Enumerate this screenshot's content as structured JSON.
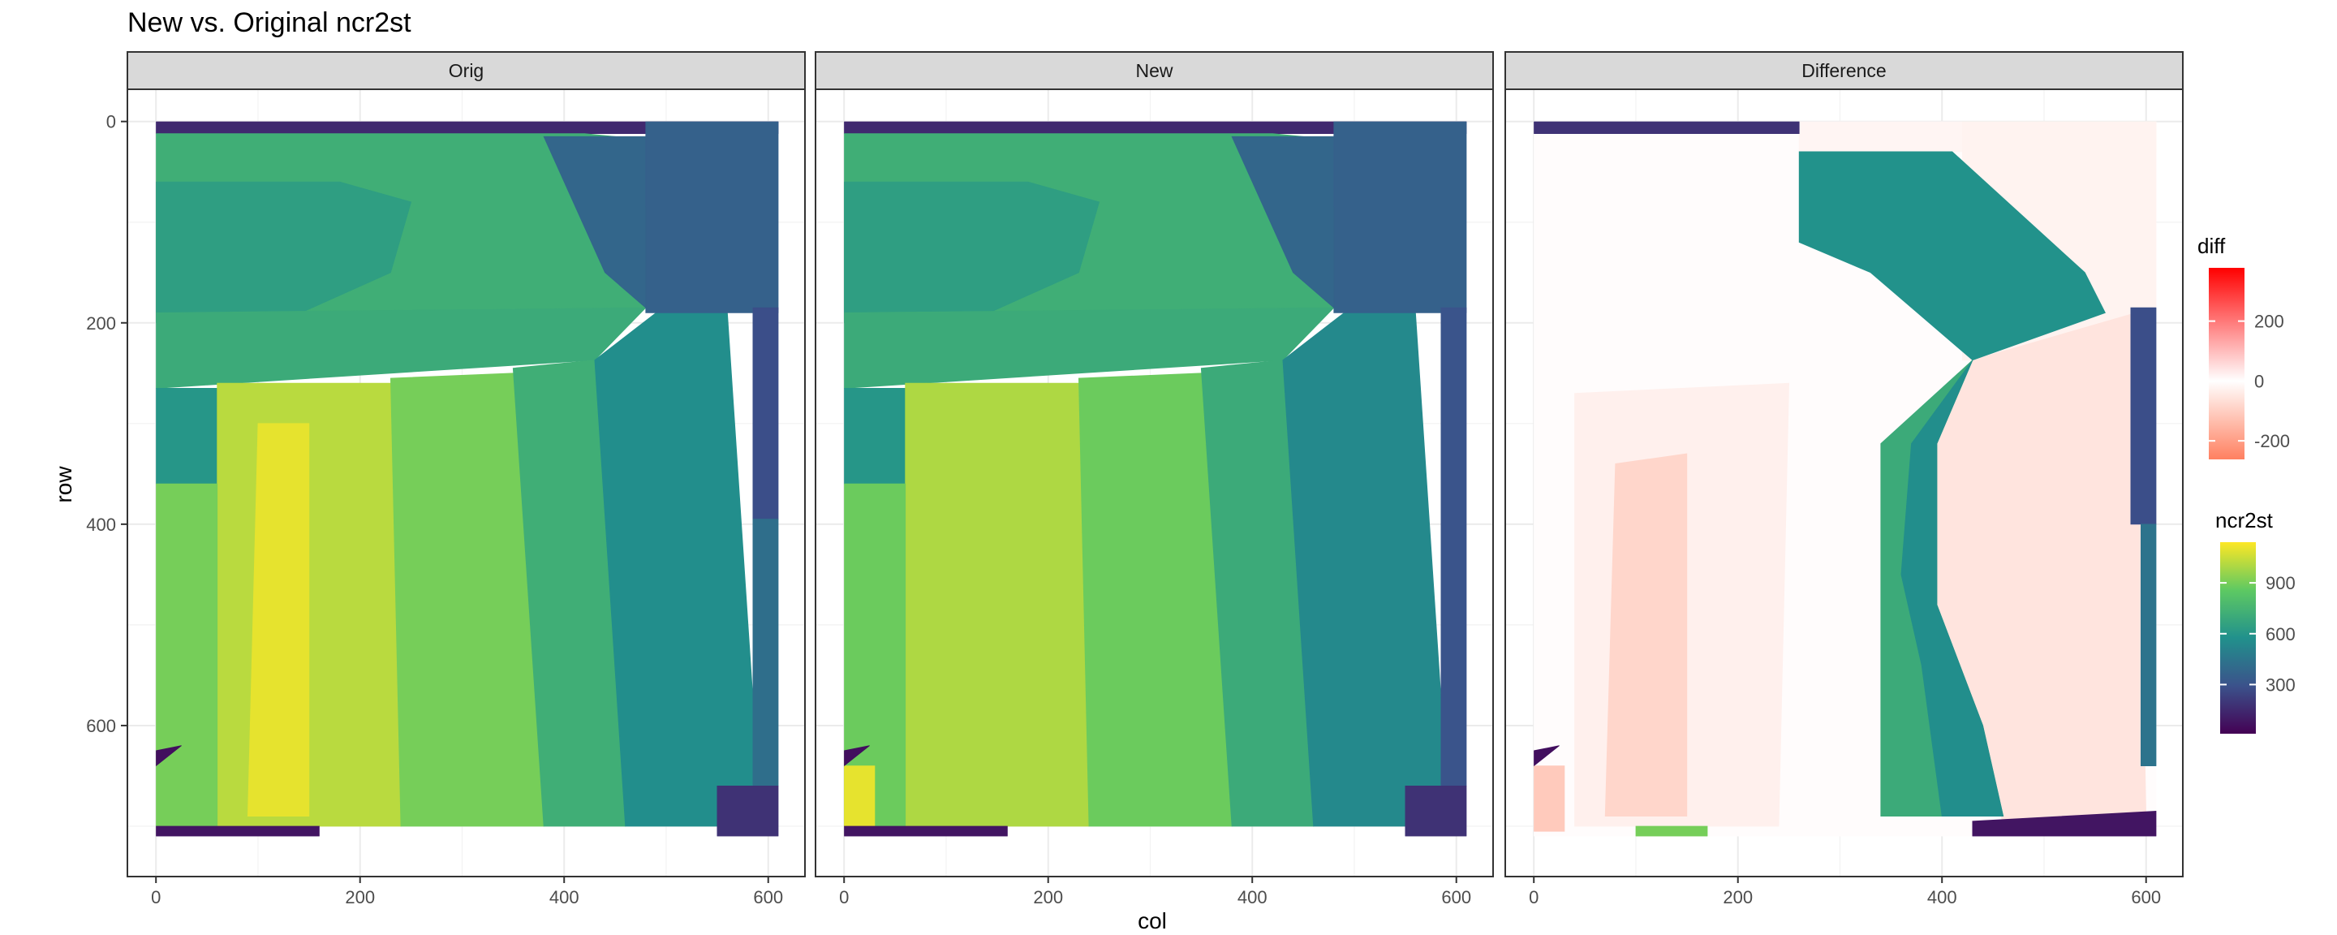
{
  "chart_data": {
    "type": "heatmap",
    "title": "New vs. Original ncr2st",
    "xlabel": "col",
    "ylabel": "row",
    "facets": [
      "Orig",
      "New",
      "Difference"
    ],
    "x_ticks": [
      0,
      200,
      400,
      600
    ],
    "y_ticks": [
      0,
      200,
      400,
      600
    ],
    "xlim": [
      -28,
      636
    ],
    "ylim": [
      750,
      -32
    ],
    "y_reversed": true,
    "grid": true,
    "legend_position": "right",
    "legends": [
      {
        "title": "diff",
        "ticks": [
          200,
          0,
          -200
        ],
        "range": [
          -262,
          378
        ],
        "colors": [
          "#ff8060",
          "#ffffff",
          "#ff0000"
        ]
      },
      {
        "title": "ncr2st",
        "ticks": [
          900,
          600,
          300
        ],
        "range": [
          10,
          1140
        ],
        "colors": [
          "#440154",
          "#3b528b",
          "#21918c",
          "#5ec962",
          "#fde725"
        ]
      }
    ],
    "orig_regions": [
      {
        "poly": [
          [
            0,
            0
          ],
          [
            610,
            0
          ],
          [
            610,
            12
          ],
          [
            0,
            12
          ]
        ],
        "value": 150
      },
      {
        "poly": [
          [
            0,
            12
          ],
          [
            420,
            12
          ],
          [
            480,
            18
          ],
          [
            480,
            185
          ],
          [
            0,
            190
          ]
        ],
        "value": 720
      },
      {
        "poly": [
          [
            0,
            60
          ],
          [
            180,
            60
          ],
          [
            250,
            80
          ],
          [
            230,
            150
          ],
          [
            120,
            200
          ],
          [
            0,
            200
          ]
        ],
        "value": 640
      },
      {
        "poly": [
          [
            0,
            190
          ],
          [
            480,
            185
          ],
          [
            430,
            237
          ],
          [
            0,
            265
          ]
        ],
        "value": 700
      },
      {
        "poly": [
          [
            0,
            265
          ],
          [
            60,
            265
          ],
          [
            60,
            360
          ],
          [
            0,
            360
          ]
        ],
        "value": 600
      },
      {
        "poly": [
          [
            60,
            260
          ],
          [
            230,
            260
          ],
          [
            240,
            700
          ],
          [
            60,
            700
          ]
        ],
        "value": 1020
      },
      {
        "poly": [
          [
            100,
            300
          ],
          [
            150,
            300
          ],
          [
            150,
            690
          ],
          [
            90,
            690
          ]
        ],
        "value": 1100
      },
      {
        "poly": [
          [
            0,
            360
          ],
          [
            60,
            360
          ],
          [
            60,
            700
          ],
          [
            0,
            700
          ]
        ],
        "value": 900
      },
      {
        "poly": [
          [
            230,
            255
          ],
          [
            350,
            250
          ],
          [
            380,
            700
          ],
          [
            240,
            700
          ]
        ],
        "value": 900
      },
      {
        "poly": [
          [
            350,
            245
          ],
          [
            430,
            237
          ],
          [
            460,
            700
          ],
          [
            380,
            700
          ]
        ],
        "value": 720
      },
      {
        "poly": [
          [
            430,
            237
          ],
          [
            490,
            190
          ],
          [
            560,
            190
          ],
          [
            590,
            650
          ],
          [
            560,
            700
          ],
          [
            460,
            700
          ]
        ],
        "value": 560
      },
      {
        "poly": [
          [
            380,
            15
          ],
          [
            480,
            15
          ],
          [
            480,
            185
          ],
          [
            440,
            150
          ]
        ],
        "value": 380
      },
      {
        "poly": [
          [
            480,
            0
          ],
          [
            610,
            0
          ],
          [
            610,
            190
          ],
          [
            480,
            190
          ]
        ],
        "value": 360
      },
      {
        "poly": [
          [
            585,
            185
          ],
          [
            610,
            185
          ],
          [
            610,
            395
          ],
          [
            585,
            395
          ]
        ],
        "value": 280
      },
      {
        "poly": [
          [
            585,
            395
          ],
          [
            610,
            395
          ],
          [
            610,
            660
          ],
          [
            585,
            660
          ]
        ],
        "value": 420
      },
      {
        "poly": [
          [
            550,
            660
          ],
          [
            610,
            660
          ],
          [
            610,
            710
          ],
          [
            550,
            710
          ]
        ],
        "value": 180
      },
      {
        "poly": [
          [
            0,
            700
          ],
          [
            160,
            700
          ],
          [
            160,
            710
          ],
          [
            0,
            710
          ]
        ],
        "value": 80
      },
      {
        "poly": [
          [
            0,
            625
          ],
          [
            25,
            620
          ],
          [
            0,
            640
          ]
        ],
        "value": 60
      }
    ],
    "new_regions": [
      {
        "poly": [
          [
            0,
            0
          ],
          [
            610,
            0
          ],
          [
            610,
            12
          ],
          [
            0,
            12
          ]
        ],
        "value": 150
      },
      {
        "poly": [
          [
            0,
            12
          ],
          [
            420,
            12
          ],
          [
            480,
            18
          ],
          [
            480,
            185
          ],
          [
            0,
            190
          ]
        ],
        "value": 720
      },
      {
        "poly": [
          [
            0,
            60
          ],
          [
            180,
            60
          ],
          [
            250,
            80
          ],
          [
            230,
            150
          ],
          [
            120,
            200
          ],
          [
            0,
            200
          ]
        ],
        "value": 640
      },
      {
        "poly": [
          [
            0,
            190
          ],
          [
            480,
            185
          ],
          [
            430,
            237
          ],
          [
            0,
            265
          ]
        ],
        "value": 700
      },
      {
        "poly": [
          [
            0,
            265
          ],
          [
            60,
            265
          ],
          [
            60,
            360
          ],
          [
            0,
            360
          ]
        ],
        "value": 600
      },
      {
        "poly": [
          [
            60,
            260
          ],
          [
            230,
            260
          ],
          [
            240,
            700
          ],
          [
            60,
            700
          ]
        ],
        "value": 1000
      },
      {
        "poly": [
          [
            0,
            360
          ],
          [
            60,
            360
          ],
          [
            60,
            700
          ],
          [
            0,
            700
          ]
        ],
        "value": 880
      },
      {
        "poly": [
          [
            0,
            640
          ],
          [
            30,
            640
          ],
          [
            30,
            700
          ],
          [
            0,
            700
          ]
        ],
        "value": 1100
      },
      {
        "poly": [
          [
            230,
            255
          ],
          [
            350,
            250
          ],
          [
            380,
            700
          ],
          [
            240,
            700
          ]
        ],
        "value": 880
      },
      {
        "poly": [
          [
            350,
            245
          ],
          [
            430,
            237
          ],
          [
            460,
            700
          ],
          [
            380,
            700
          ]
        ],
        "value": 700
      },
      {
        "poly": [
          [
            380,
            15
          ],
          [
            480,
            15
          ],
          [
            480,
            185
          ],
          [
            440,
            150
          ]
        ],
        "value": 380
      },
      {
        "poly": [
          [
            430,
            237
          ],
          [
            490,
            190
          ],
          [
            560,
            190
          ],
          [
            590,
            650
          ],
          [
            560,
            700
          ],
          [
            460,
            700
          ]
        ],
        "value": 540
      },
      {
        "poly": [
          [
            480,
            0
          ],
          [
            610,
            0
          ],
          [
            610,
            190
          ],
          [
            480,
            190
          ]
        ],
        "value": 360
      },
      {
        "poly": [
          [
            585,
            185
          ],
          [
            610,
            185
          ],
          [
            610,
            660
          ],
          [
            585,
            660
          ]
        ],
        "value": 300
      },
      {
        "poly": [
          [
            550,
            660
          ],
          [
            610,
            660
          ],
          [
            610,
            710
          ],
          [
            550,
            710
          ]
        ],
        "value": 180
      },
      {
        "poly": [
          [
            0,
            700
          ],
          [
            160,
            700
          ],
          [
            160,
            710
          ],
          [
            0,
            710
          ]
        ],
        "value": 80
      },
      {
        "poly": [
          [
            0,
            625
          ],
          [
            25,
            620
          ],
          [
            0,
            640
          ]
        ],
        "value": 60
      }
    ],
    "diff_regions": [
      {
        "type": "diff",
        "poly": [
          [
            0,
            0
          ],
          [
            610,
            0
          ],
          [
            610,
            710
          ],
          [
            0,
            710
          ]
        ],
        "value": 4
      },
      {
        "type": "diff",
        "poly": [
          [
            260,
            0
          ],
          [
            610,
            0
          ],
          [
            610,
            30
          ],
          [
            260,
            30
          ]
        ],
        "value": -20
      },
      {
        "type": "diff",
        "poly": [
          [
            420,
            0
          ],
          [
            610,
            0
          ],
          [
            610,
            190
          ],
          [
            430,
            237
          ],
          [
            420,
            237
          ]
        ],
        "value": -25
      },
      {
        "type": "diff",
        "poly": [
          [
            40,
            270
          ],
          [
            250,
            260
          ],
          [
            240,
            700
          ],
          [
            40,
            700
          ]
        ],
        "value": -30
      },
      {
        "type": "diff",
        "poly": [
          [
            80,
            340
          ],
          [
            150,
            330
          ],
          [
            150,
            690
          ],
          [
            70,
            690
          ]
        ],
        "value": -85
      },
      {
        "type": "diff",
        "poly": [
          [
            0,
            640
          ],
          [
            30,
            640
          ],
          [
            30,
            705
          ],
          [
            0,
            705
          ]
        ],
        "value": -110
      },
      {
        "type": "diff",
        "poly": [
          [
            430,
            237
          ],
          [
            590,
            190
          ],
          [
            600,
            690
          ],
          [
            460,
            700
          ],
          [
            440,
            600
          ],
          [
            395,
            480
          ],
          [
            395,
            320
          ]
        ],
        "value": -55
      },
      {
        "type": "ncr",
        "poly": [
          [
            0,
            0
          ],
          [
            260,
            0
          ],
          [
            260,
            12
          ],
          [
            0,
            12
          ]
        ],
        "value": 180
      },
      {
        "type": "ncr",
        "poly": [
          [
            260,
            30
          ],
          [
            410,
            30
          ],
          [
            540,
            150
          ],
          [
            560,
            190
          ],
          [
            430,
            237
          ],
          [
            330,
            150
          ],
          [
            260,
            120
          ]
        ],
        "value": 580
      },
      {
        "type": "ncr",
        "poly": [
          [
            430,
            237
          ],
          [
            395,
            320
          ],
          [
            395,
            480
          ],
          [
            440,
            600
          ],
          [
            460,
            690
          ],
          [
            340,
            690
          ],
          [
            340,
            320
          ]
        ],
        "value": 700
      },
      {
        "type": "ncr",
        "poly": [
          [
            430,
            237
          ],
          [
            395,
            320
          ],
          [
            395,
            480
          ],
          [
            440,
            600
          ],
          [
            460,
            690
          ],
          [
            400,
            690
          ],
          [
            380,
            540
          ],
          [
            360,
            450
          ],
          [
            370,
            320
          ]
        ],
        "value": 560
      },
      {
        "type": "ncr",
        "poly": [
          [
            585,
            185
          ],
          [
            610,
            185
          ],
          [
            610,
            400
          ],
          [
            585,
            400
          ]
        ],
        "value": 280
      },
      {
        "type": "ncr",
        "poly": [
          [
            595,
            400
          ],
          [
            610,
            400
          ],
          [
            610,
            640
          ],
          [
            595,
            640
          ]
        ],
        "value": 440
      },
      {
        "type": "ncr",
        "poly": [
          [
            430,
            695
          ],
          [
            610,
            685
          ],
          [
            610,
            710
          ],
          [
            430,
            710
          ]
        ],
        "value": 80
      },
      {
        "type": "ncr",
        "poly": [
          [
            100,
            700
          ],
          [
            170,
            700
          ],
          [
            170,
            710
          ],
          [
            100,
            710
          ]
        ],
        "value": 900
      },
      {
        "type": "ncr",
        "poly": [
          [
            0,
            625
          ],
          [
            25,
            620
          ],
          [
            0,
            640
          ]
        ],
        "value": 60
      }
    ]
  }
}
